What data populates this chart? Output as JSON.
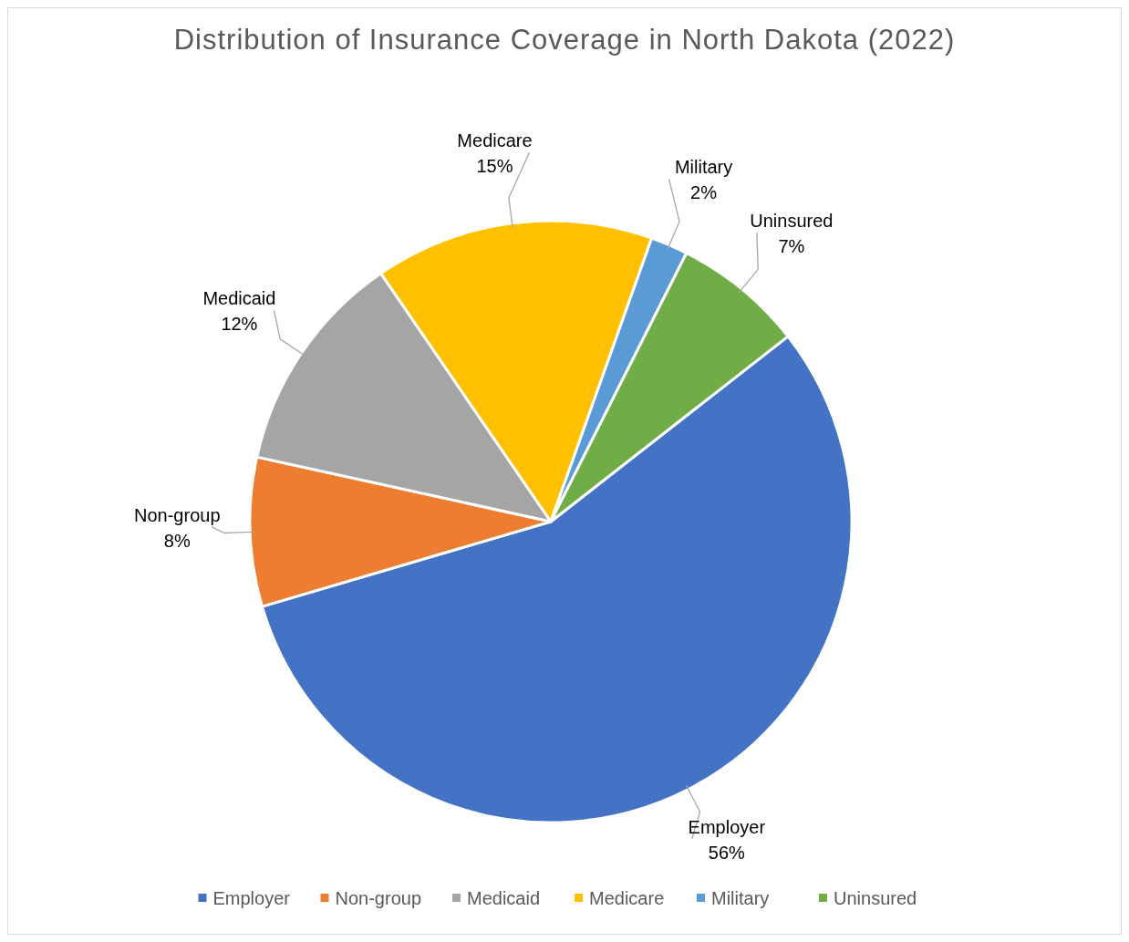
{
  "chart_data": {
    "type": "pie",
    "title": "Distribution of Insurance Coverage in North Dakota (2022)",
    "categories": [
      "Employer",
      "Non-group",
      "Medicaid",
      "Medicare",
      "Military",
      "Uninsured"
    ],
    "values": [
      56,
      8,
      12,
      15,
      2,
      7
    ],
    "value_labels": [
      "56%",
      "8%",
      "12%",
      "15%",
      "2%",
      "7%"
    ],
    "colors": [
      "#4472c4",
      "#ed7d31",
      "#a5a5a5",
      "#ffc000",
      "#5b9bd5",
      "#70ad47"
    ],
    "legend": "bottom"
  }
}
